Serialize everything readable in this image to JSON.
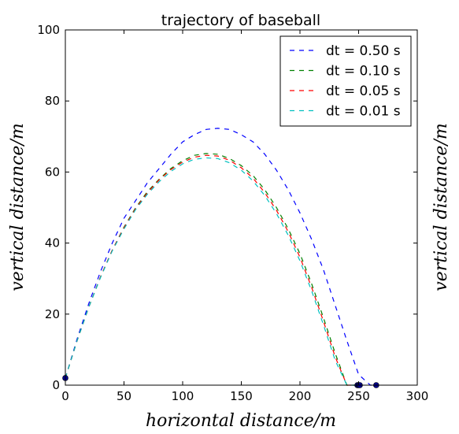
{
  "chart_data": {
    "type": "line",
    "title": "trajectory of baseball",
    "xlabel": "horizontal distance/m",
    "ylabel": "vertical distance/m",
    "xlim": [
      0,
      300
    ],
    "ylim": [
      0,
      100
    ],
    "xticks": [
      "0",
      "50",
      "100",
      "150",
      "200",
      "250",
      "300"
    ],
    "yticks": [
      "0",
      "20",
      "40",
      "60",
      "80",
      "100"
    ],
    "grid": false,
    "legend_position": "top-right",
    "series": [
      {
        "name": "dt = 0.50 s",
        "color": "#0000ff",
        "x": [
          0,
          10,
          20,
          30,
          40,
          50,
          60,
          70,
          80,
          90,
          100,
          110,
          120,
          130,
          140,
          150,
          160,
          170,
          180,
          190,
          200,
          210,
          220,
          230,
          240,
          250,
          260,
          265
        ],
        "y": [
          2,
          13,
          23,
          32,
          40,
          47,
          52,
          57,
          61,
          65,
          68.5,
          70.5,
          72,
          72.3,
          72,
          70.5,
          68.5,
          65,
          60.5,
          55,
          48.5,
          41,
          32.5,
          22.5,
          12.5,
          3,
          0,
          0
        ]
      },
      {
        "name": "dt = 0.10 s",
        "color": "#008000",
        "x": [
          0,
          10,
          20,
          30,
          40,
          50,
          60,
          70,
          80,
          90,
          100,
          110,
          120,
          130,
          140,
          150,
          160,
          170,
          180,
          190,
          200,
          210,
          220,
          230,
          240,
          251
        ],
        "y": [
          2,
          12.5,
          22,
          30.5,
          38,
          44.5,
          50,
          54.5,
          58,
          61,
          63.2,
          64.7,
          65.2,
          65,
          63.8,
          61.8,
          59,
          55,
          50,
          44,
          37,
          28.5,
          19,
          9,
          0,
          0
        ]
      },
      {
        "name": "dt = 0.05 s",
        "color": "#ff0000",
        "x": [
          0,
          10,
          20,
          30,
          40,
          50,
          60,
          70,
          80,
          90,
          100,
          110,
          120,
          130,
          140,
          150,
          160,
          170,
          180,
          190,
          200,
          210,
          220,
          230,
          240,
          250
        ],
        "y": [
          2,
          12.5,
          22,
          30.5,
          38,
          44.3,
          49.8,
          54.2,
          57.8,
          60.7,
          62.8,
          64.2,
          64.7,
          64.5,
          63.3,
          61.2,
          58.3,
          54.2,
          49.2,
          43.2,
          36,
          27.5,
          18,
          8,
          0,
          0
        ]
      },
      {
        "name": "dt = 0.01 s",
        "color": "#00bfbf",
        "x": [
          0,
          10,
          20,
          30,
          40,
          50,
          60,
          70,
          80,
          90,
          100,
          110,
          120,
          130,
          140,
          150,
          160,
          170,
          180,
          190,
          200,
          210,
          220,
          230,
          240,
          249
        ],
        "y": [
          2,
          12.5,
          22,
          30.3,
          37.8,
          44,
          49.5,
          53.8,
          57.3,
          60.2,
          62.3,
          63.6,
          64,
          63.8,
          62.6,
          60.5,
          57.5,
          53.4,
          48.3,
          42.2,
          35,
          26.5,
          17,
          7,
          0,
          0
        ]
      }
    ],
    "markers": [
      {
        "x": 0,
        "y": 2
      },
      {
        "x": 249,
        "y": 0
      },
      {
        "x": 250,
        "y": 0
      },
      {
        "x": 251,
        "y": 0
      },
      {
        "x": 265,
        "y": 0
      }
    ]
  }
}
